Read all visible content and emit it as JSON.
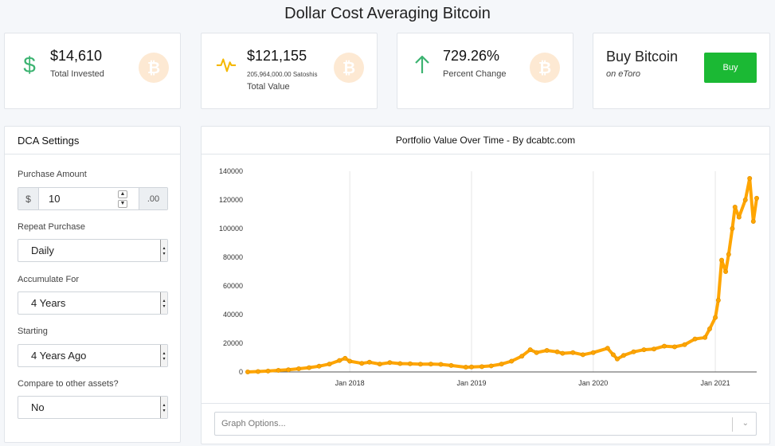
{
  "page": {
    "title": "Dollar Cost Averaging Bitcoin"
  },
  "stats": {
    "invested": {
      "value": "$14,610",
      "label": "Total Invested",
      "icon": "dollar-icon",
      "color": "#3cb371"
    },
    "total": {
      "value": "$121,155",
      "sub": "205,964,000.00 Satoshis",
      "label": "Total Value",
      "icon": "pulse-icon",
      "color": "#f5b800"
    },
    "change": {
      "value": "729.26%",
      "label": "Percent Change",
      "icon": "arrow-up-icon",
      "color": "#3cb371"
    }
  },
  "buy": {
    "title": "Buy Bitcoin",
    "sub": "on eToro",
    "button": "Buy",
    "button_color": "#1bb934"
  },
  "settings": {
    "title": "DCA Settings",
    "purchase_amount": {
      "label": "Purchase Amount",
      "prefix": "$",
      "value": "10",
      "suffix": ".00"
    },
    "repeat": {
      "label": "Repeat Purchase",
      "value": "Daily"
    },
    "accumulate": {
      "label": "Accumulate For",
      "value": "4 Years"
    },
    "starting": {
      "label": "Starting",
      "value": "4 Years Ago"
    },
    "compare": {
      "label": "Compare to other assets?",
      "value": "No"
    }
  },
  "chart": {
    "title": "Portfolio Value Over Time - By dcabtc.com",
    "graph_options_placeholder": "Graph Options..."
  },
  "chart_data": {
    "type": "line",
    "series": [
      {
        "color": "#ffa500",
        "x": [
          "2017-03-01",
          "2017-04-01",
          "2017-05-01",
          "2017-06-01",
          "2017-07-01",
          "2017-08-01",
          "2017-09-01",
          "2017-10-01",
          "2017-11-01",
          "2017-12-01",
          "2017-12-18",
          "2018-01-01",
          "2018-02-06",
          "2018-03-01",
          "2018-04-01",
          "2018-05-01",
          "2018-06-01",
          "2018-07-01",
          "2018-08-01",
          "2018-09-01",
          "2018-10-01",
          "2018-11-01",
          "2018-12-15",
          "2019-01-01",
          "2019-02-01",
          "2019-03-01",
          "2019-04-01",
          "2019-05-01",
          "2019-06-01",
          "2019-06-26",
          "2019-07-15",
          "2019-08-15",
          "2019-09-15",
          "2019-10-01",
          "2019-11-01",
          "2019-12-01",
          "2020-01-01",
          "2020-02-13",
          "2020-03-01",
          "2020-03-13",
          "2020-04-01",
          "2020-05-01",
          "2020-06-01",
          "2020-07-01",
          "2020-08-01",
          "2020-09-01",
          "2020-10-01",
          "2020-11-01",
          "2020-12-01",
          "2020-12-15",
          "2021-01-01",
          "2021-01-10",
          "2021-01-20",
          "2021-02-01",
          "2021-02-10",
          "2021-02-21",
          "2021-03-01",
          "2021-03-13",
          "2021-04-01",
          "2021-04-14",
          "2021-04-25",
          "2021-05-05"
        ],
        "y": [
          0,
          300,
          600,
          1100,
          1500,
          2200,
          3000,
          4000,
          5500,
          8000,
          9500,
          7500,
          6000,
          6800,
          5500,
          6500,
          5800,
          5700,
          5400,
          5500,
          5300,
          4500,
          3300,
          3500,
          3700,
          4200,
          5500,
          7500,
          11000,
          15500,
          13500,
          15000,
          14000,
          13000,
          13500,
          12000,
          13500,
          16500,
          12000,
          9000,
          11500,
          14000,
          15500,
          16000,
          18000,
          17500,
          19000,
          23000,
          24000,
          30000,
          38000,
          50000,
          78000,
          70000,
          82000,
          100000,
          115000,
          108000,
          120000,
          135000,
          105000,
          121155
        ]
      }
    ],
    "x_ticks": [
      "Jan 2018",
      "Jan 2019",
      "Jan 2020",
      "Jan 2021"
    ],
    "y_ticks": [
      "0",
      "20000",
      "40000",
      "60000",
      "80000",
      "100000",
      "120000",
      "140000"
    ],
    "xlim": [
      "2017-03-01",
      "2021-05-05"
    ],
    "ylim": [
      0,
      140000
    ],
    "grid": "vertical"
  }
}
